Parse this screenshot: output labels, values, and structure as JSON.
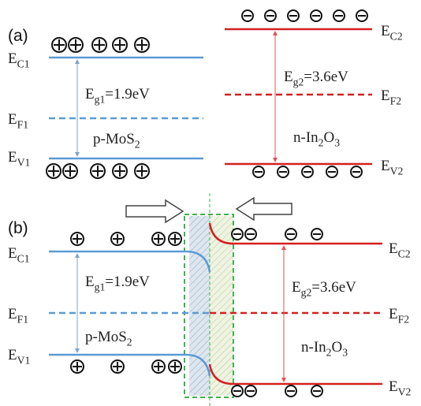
{
  "panel_a": {
    "label": "(a)",
    "left_levels": [
      [
        "E",
        "C1"
      ],
      [
        "E",
        "F1"
      ],
      [
        "E",
        "V1"
      ]
    ],
    "right_levels": [
      [
        "E",
        "C2"
      ],
      [
        "E",
        "F2"
      ],
      [
        "E",
        "V2"
      ]
    ],
    "gap_left": [
      "E",
      "g1",
      "=1.9eV"
    ],
    "material_left": [
      "p-MoS",
      "2"
    ],
    "gap_right": [
      "E",
      "g2",
      "=3.6eV"
    ],
    "material_right": [
      "n-In",
      "2",
      "O",
      "3"
    ]
  },
  "panel_b": {
    "label": "(b)",
    "left_levels": [
      [
        "E",
        "C1"
      ],
      [
        "E",
        "F1"
      ],
      [
        "E",
        "V1"
      ]
    ],
    "right_levels": [
      [
        "E",
        "C2"
      ],
      [
        "E",
        "F2"
      ],
      [
        "E",
        "V2"
      ]
    ],
    "gap_left": [
      "E",
      "g1",
      "=1.9eV"
    ],
    "material_left": [
      "p-MoS",
      "2"
    ],
    "gap_right": [
      "E",
      "g2",
      "=3.6eV"
    ],
    "material_right": [
      "n-In",
      "2",
      "O",
      "3"
    ]
  }
}
